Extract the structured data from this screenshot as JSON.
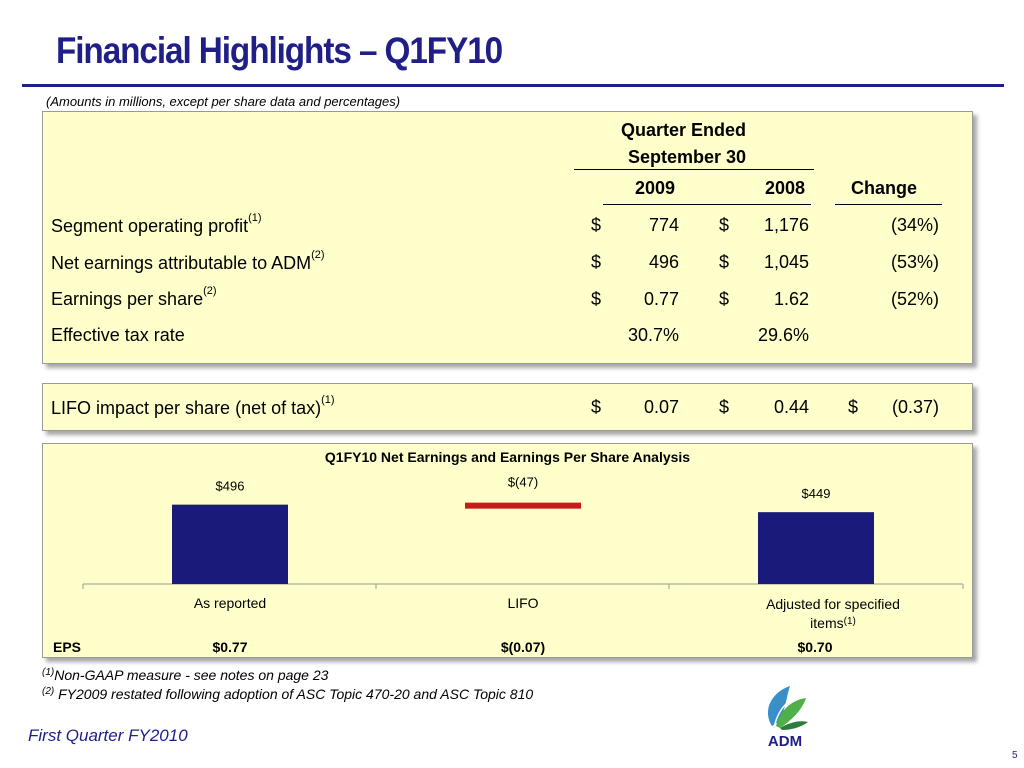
{
  "slide": {
    "title": "Financial Highlights – Q1FY10",
    "subtitle": "(Amounts in millions, except per share data and percentages)",
    "footer": "First Quarter FY2010",
    "page_number": "5"
  },
  "table": {
    "period_header_1": "Quarter Ended",
    "period_header_2": "September 30",
    "col_2009": "2009",
    "col_2008": "2008",
    "col_change": "Change",
    "rows": [
      {
        "label": "Segment operating profit",
        "note": "(1)",
        "cur_2009": "$",
        "v2009": "774",
        "cur_2008": "$",
        "v2008": "1,176",
        "change": "(34%)"
      },
      {
        "label": "Net earnings attributable to ADM",
        "note": "(2)",
        "cur_2009": "$",
        "v2009": "496",
        "cur_2008": "$",
        "v2008": "1,045",
        "change": "(53%)"
      },
      {
        "label": "Earnings per share",
        "note": "(2)",
        "cur_2009": "$",
        "v2009": "0.77",
        "cur_2008": "$",
        "v2008": "1.62",
        "change": "(52%)"
      },
      {
        "label": "Effective tax rate",
        "note": "",
        "cur_2009": "",
        "v2009": "30.7%",
        "cur_2008": "",
        "v2008": "29.6%",
        "change": ""
      }
    ]
  },
  "lifo": {
    "label": "LIFO impact per share (net of tax)",
    "note": "(1)",
    "cur_2009": "$",
    "v2009": "0.07",
    "cur_2008": "$",
    "v2008": "0.44",
    "cur_change": "$",
    "change": "(0.37)"
  },
  "colors": {
    "title": "#1f1f87",
    "panel_bg": "#ffffcc",
    "bar_primary": "#1a1a7a",
    "bar_negative": "#cc1a1a"
  },
  "chart_data": {
    "type": "bar",
    "title": "Q1FY10 Net Earnings and Earnings Per Share Analysis",
    "categories": [
      "As reported",
      "LIFO",
      "Adjusted for specified items"
    ],
    "category_notes": [
      "",
      "",
      "(1)"
    ],
    "values": [
      496,
      -47,
      449
    ],
    "value_labels": [
      "$496",
      "$(47)",
      "$449"
    ],
    "bar_styles": [
      "solid",
      "marker",
      "solid"
    ],
    "colors": [
      "#1a1a7a",
      "#cc1a1a",
      "#1a1a7a"
    ],
    "ylim": [
      0,
      600
    ],
    "eps_label": "EPS",
    "eps_values": [
      "$0.77",
      "$(0.07)",
      "$0.70"
    ]
  },
  "footnotes": {
    "n1_mark": "(1)",
    "n1_text": "Non-GAAP measure - see notes on page 23",
    "n2_mark": "(2)",
    "n2_text": "FY2009 restated following adoption of ASC Topic 470-20 and ASC Topic 810"
  },
  "logo": {
    "text": "ADM",
    "icon": "adm-leaf-logo-icon"
  }
}
